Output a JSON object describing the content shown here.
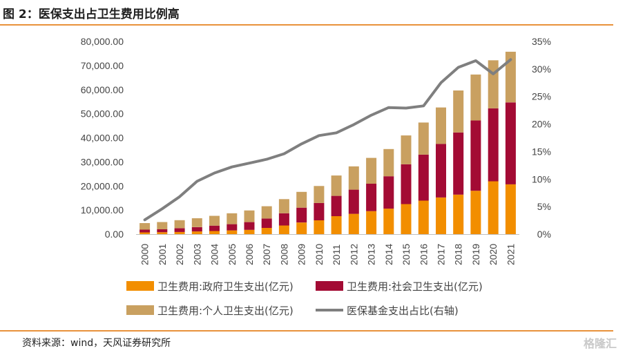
{
  "title": "图 2：医保支出占卫生费用比例高",
  "source": "资料来源：wind，天风证券研究所",
  "watermark": "格隆汇",
  "colors": {
    "government": "#f28e00",
    "social": "#a30b34",
    "personal": "#c9a060",
    "ratio_line": "#7f7f7f",
    "rule": "#e8913a"
  },
  "chart_data": {
    "type": "bar",
    "stacked": true,
    "categories": [
      "2000",
      "2001",
      "2002",
      "2003",
      "2004",
      "2005",
      "2006",
      "2007",
      "2008",
      "2009",
      "2010",
      "2011",
      "2012",
      "2013",
      "2014",
      "2015",
      "2016",
      "2017",
      "2018",
      "2019",
      "2020",
      "2021"
    ],
    "series": [
      {
        "name": "卫生费用:政府卫生支出(亿元)",
        "axis": "left",
        "values": [
          710,
          800,
          910,
          1120,
          1290,
          1550,
          1780,
          2580,
          3590,
          4820,
          5730,
          7460,
          8430,
          9550,
          10580,
          12480,
          13910,
          15210,
          16400,
          18020,
          21940,
          20680
        ]
      },
      {
        "name": "卫生费用:社会卫生支出(亿元)",
        "axis": "left",
        "values": [
          1170,
          1210,
          1540,
          1790,
          2230,
          2590,
          3210,
          3890,
          5070,
          6150,
          7200,
          8420,
          10030,
          11390,
          13440,
          16510,
          19100,
          22260,
          25810,
          29150,
          30270,
          34010
        ]
      },
      {
        "name": "卫生费用:个人卫生支出(亿元)",
        "axis": "left",
        "values": [
          2710,
          3010,
          3340,
          3680,
          4070,
          4520,
          4850,
          5100,
          5880,
          6570,
          7050,
          8470,
          9660,
          10730,
          11300,
          11990,
          13340,
          15130,
          17440,
          19100,
          19960,
          21030
        ]
      },
      {
        "name": "医保基金支出占比(右轴)",
        "type": "line",
        "axis": "right",
        "values": [
          2.6,
          4.6,
          6.8,
          9.6,
          11.1,
          12.2,
          12.9,
          13.6,
          14.6,
          16.4,
          17.9,
          18.4,
          19.9,
          21.6,
          23.0,
          22.9,
          23.3,
          27.5,
          30.3,
          31.5,
          29.1,
          31.7
        ]
      }
    ],
    "ylim_left": [
      0,
      80000
    ],
    "ylim_right": [
      0,
      35
    ],
    "yticks_left": [
      "80,000.00",
      "70,000.00",
      "60,000.00",
      "50,000.00",
      "40,000.00",
      "30,000.00",
      "20,000.00",
      "10,000.00",
      "0.00"
    ],
    "yticks_right": [
      "35%",
      "30%",
      "25%",
      "20%",
      "15%",
      "10%",
      "5%",
      "0%"
    ],
    "grid": false,
    "legend_position": "bottom"
  }
}
